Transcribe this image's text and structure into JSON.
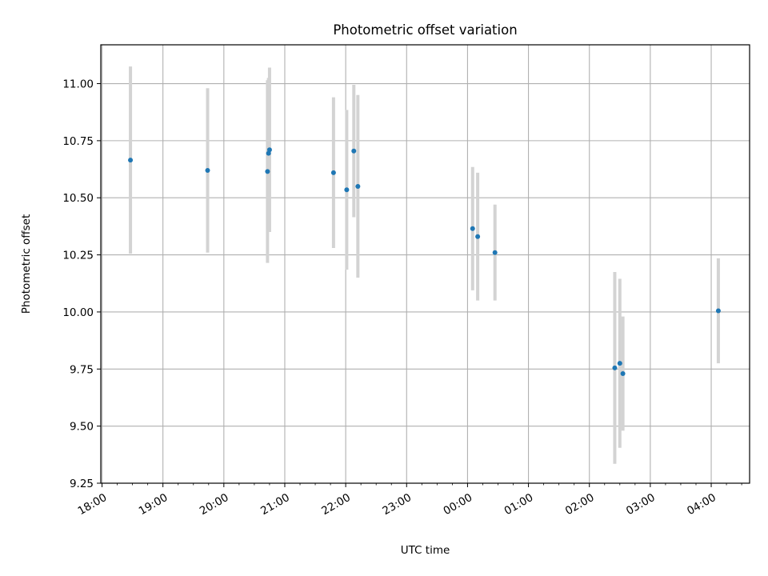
{
  "chart_data": {
    "type": "scatter",
    "title": "Photometric offset variation",
    "xlabel": "UTC time",
    "ylabel": "Photometric offset",
    "x_tick_labels": [
      "18:00",
      "19:00",
      "20:00",
      "21:00",
      "22:00",
      "23:00",
      "00:00",
      "01:00",
      "02:00",
      "03:00",
      "04:00"
    ],
    "y_tick_labels": [
      "9.25",
      "9.50",
      "9.75",
      "10.00",
      "10.25",
      "10.50",
      "10.75",
      "11.00"
    ],
    "xlim_hours": [
      17.98,
      28.63
    ],
    "ylim": [
      9.25,
      11.17
    ],
    "grid": true,
    "point_color": "#1f77b4",
    "errorbar_color": "#d3d3d3",
    "series": [
      {
        "x": [
          "18:28",
          "19:44",
          "20:43",
          "20:44",
          "20:45",
          "21:48",
          "22:01",
          "22:08",
          "22:12",
          "00:05",
          "00:10",
          "00:27",
          "02:25",
          "02:30",
          "02:33",
          "04:07"
        ],
        "y": [
          10.665,
          10.62,
          10.615,
          10.695,
          10.71,
          10.61,
          10.535,
          10.705,
          10.55,
          10.365,
          10.33,
          10.26,
          9.755,
          9.775,
          9.73,
          10.005
        ],
        "err": [
          0.41,
          0.36,
          0.4,
          0.33,
          0.36,
          0.33,
          0.35,
          0.29,
          0.4,
          0.27,
          0.28,
          0.21,
          0.42,
          0.37,
          0.25,
          0.23
        ]
      }
    ]
  }
}
